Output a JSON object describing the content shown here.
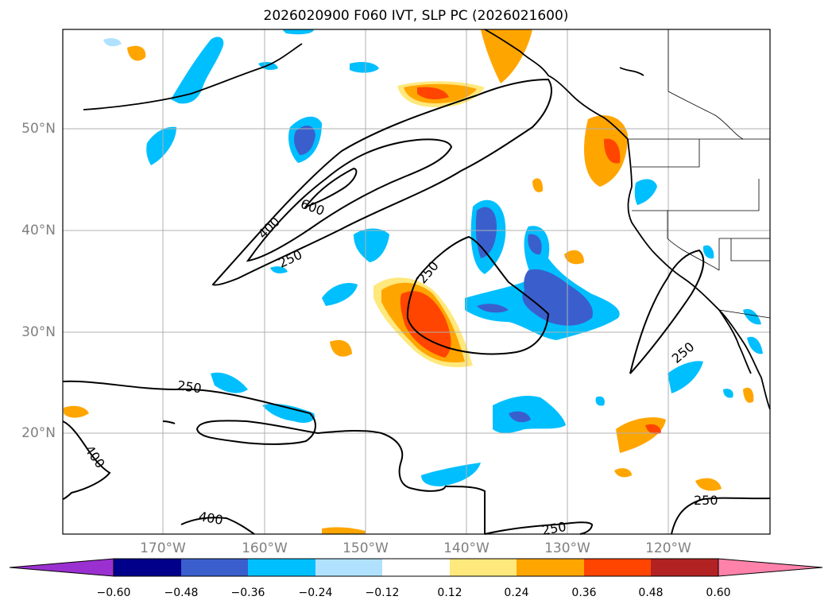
{
  "title": "2026020900 F060 IVT, SLP PC (2026021600)",
  "lat_labels": [
    "50°N",
    "40°N",
    "30°N",
    "20°N"
  ],
  "lon_labels": [
    "170°W",
    "160°W",
    "150°W",
    "140°W",
    "130°W",
    "120°W"
  ],
  "contour_labels": [
    "600",
    "400",
    "250",
    "250",
    "250",
    "400",
    "250",
    "400",
    "250",
    "250"
  ],
  "colorbar": {
    "ticks": [
      "−0.60",
      "−0.48",
      "−0.36",
      "−0.24",
      "−0.12",
      "0.12",
      "0.24",
      "0.36",
      "0.48",
      "0.60"
    ],
    "colors": [
      "#9b30d0",
      "#00008b",
      "#3a5fcd",
      "#00bfff",
      "#b0e2ff",
      "#ffffff",
      "#ffe87c",
      "#ffa500",
      "#ff4500",
      "#b22222",
      "#ff82ab"
    ]
  },
  "palette": {
    "pos_weak": "#ffe87c",
    "pos_mid": "#ffa500",
    "pos_strong": "#ff4500",
    "neg_weak": "#b0e2ff",
    "neg_mid": "#00bfff",
    "neg_strong": "#3a5fcd"
  }
}
